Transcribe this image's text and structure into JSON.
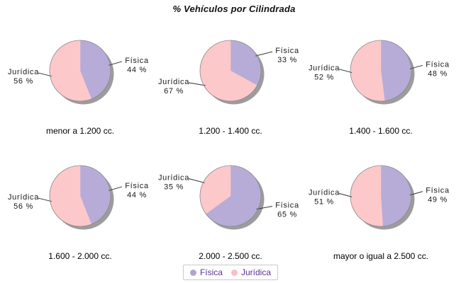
{
  "title": "% Vehículos por Cilindrada",
  "legend": {
    "items": [
      {
        "label": "Física",
        "color": "#b0a4cf"
      },
      {
        "label": "Jurídica",
        "color": "#f9bfc2"
      }
    ],
    "text_color": "#5b3190"
  },
  "style": {
    "fisica_color": "#b7acd8",
    "juridica_color": "#fdc8ca",
    "shadow_color": "#9c9c9c",
    "outline_color": "#8a8a8a",
    "leader_color": "#333333"
  },
  "chart_data": [
    {
      "type": "pie",
      "title": "menor a 1.200 cc.",
      "labels": [
        "Física",
        "Jurídica"
      ],
      "values": [
        44,
        56
      ],
      "colors": [
        "#b7acd8",
        "#fdc8ca"
      ],
      "value_suffix": " %",
      "start": "top",
      "direction": "clockwise",
      "legend_position": "bottom"
    },
    {
      "type": "pie",
      "title": "1.200 - 1.400 cc.",
      "labels": [
        "Física",
        "Jurídica"
      ],
      "values": [
        33,
        67
      ],
      "colors": [
        "#b7acd8",
        "#fdc8ca"
      ],
      "value_suffix": " %",
      "start": "top",
      "direction": "clockwise",
      "legend_position": "bottom"
    },
    {
      "type": "pie",
      "title": "1.400 - 1.600 cc.",
      "labels": [
        "Física",
        "Jurídica"
      ],
      "values": [
        48,
        52
      ],
      "colors": [
        "#b7acd8",
        "#fdc8ca"
      ],
      "value_suffix": " %",
      "start": "top",
      "direction": "clockwise",
      "legend_position": "bottom"
    },
    {
      "type": "pie",
      "title": "1.600 - 2.000 cc.",
      "labels": [
        "Física",
        "Jurídica"
      ],
      "values": [
        44,
        56
      ],
      "colors": [
        "#b7acd8",
        "#fdc8ca"
      ],
      "value_suffix": " %",
      "start": "top",
      "direction": "clockwise",
      "legend_position": "bottom"
    },
    {
      "type": "pie",
      "title": "2.000 - 2.500 cc.",
      "labels": [
        "Física",
        "Jurídica"
      ],
      "values": [
        65,
        35
      ],
      "colors": [
        "#b7acd8",
        "#fdc8ca"
      ],
      "value_suffix": " %",
      "start": "top",
      "direction": "clockwise",
      "legend_position": "bottom"
    },
    {
      "type": "pie",
      "title": "mayor o igual a 2.500 cc.",
      "labels": [
        "Física",
        "Jurídica"
      ],
      "values": [
        49,
        51
      ],
      "colors": [
        "#b7acd8",
        "#fdc8ca"
      ],
      "value_suffix": " %",
      "start": "top",
      "direction": "clockwise",
      "legend_position": "bottom"
    }
  ]
}
